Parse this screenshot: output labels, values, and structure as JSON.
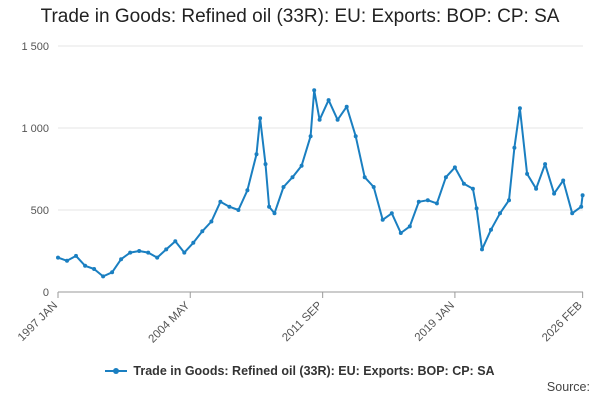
{
  "chart_data": {
    "type": "line",
    "title": "Trade in Goods: Refined oil (33R): EU: Exports: BOP: CP: SA",
    "xlabel": "",
    "ylabel": "",
    "ylim": [
      0,
      1500
    ],
    "yticks": [
      0,
      500,
      1000,
      1500
    ],
    "ytick_labels": [
      "0",
      "500",
      "1 000",
      "1 500"
    ],
    "xlim": [
      1997.0,
      2026.1
    ],
    "xticks": [
      {
        "label": "1997 JAN",
        "value": 1997.0
      },
      {
        "label": "2004 MAY",
        "value": 2004.33
      },
      {
        "label": "2011 SEP",
        "value": 2011.67
      },
      {
        "label": "2019 JAN",
        "value": 2019.0
      },
      {
        "label": "2026 FEB",
        "value": 2026.08
      }
    ],
    "grid": true,
    "legend_position": "bottom",
    "series": [
      {
        "name": "Trade in Goods: Refined oil (33R): EU: Exports: BOP: CP: SA",
        "color": "#1a7fc1",
        "x": [
          1997.0,
          1997.5,
          1998.0,
          1998.5,
          1999.0,
          1999.5,
          2000.0,
          2000.5,
          2001.0,
          2001.5,
          2002.0,
          2002.5,
          2003.0,
          2003.5,
          2004.0,
          2004.5,
          2005.0,
          2005.5,
          2006.0,
          2006.5,
          2007.0,
          2007.5,
          2008.0,
          2008.2,
          2008.5,
          2008.7,
          2009.0,
          2009.5,
          2010.0,
          2010.5,
          2011.0,
          2011.2,
          2011.5,
          2012.0,
          2012.5,
          2013.0,
          2013.5,
          2014.0,
          2014.5,
          2015.0,
          2015.5,
          2016.0,
          2016.5,
          2017.0,
          2017.5,
          2018.0,
          2018.5,
          2019.0,
          2019.5,
          2020.0,
          2020.2,
          2020.5,
          2021.0,
          2021.5,
          2022.0,
          2022.3,
          2022.6,
          2023.0,
          2023.5,
          2024.0,
          2024.5,
          2025.0,
          2025.5,
          2026.0,
          2026.08
        ],
        "values": [
          210,
          190,
          220,
          160,
          140,
          95,
          120,
          200,
          240,
          250,
          240,
          210,
          260,
          310,
          240,
          300,
          370,
          430,
          550,
          520,
          500,
          620,
          840,
          1060,
          780,
          520,
          480,
          640,
          700,
          770,
          950,
          1230,
          1050,
          1170,
          1050,
          1130,
          950,
          700,
          640,
          440,
          480,
          360,
          400,
          550,
          560,
          540,
          700,
          760,
          660,
          630,
          510,
          260,
          380,
          480,
          560,
          880,
          1120,
          720,
          630,
          780,
          600,
          680,
          480,
          520,
          590
        ]
      }
    ]
  },
  "source_label": "Source:"
}
